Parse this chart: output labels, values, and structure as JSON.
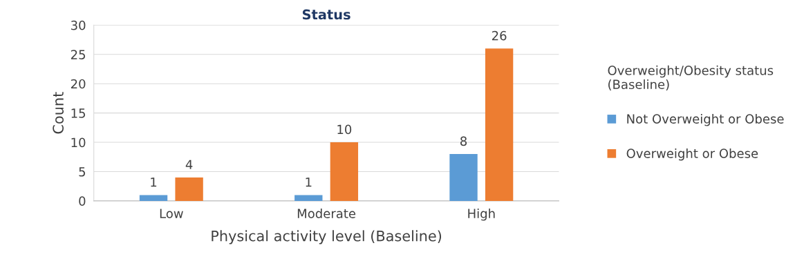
{
  "chart_data": {
    "type": "bar",
    "title": "Status",
    "xlabel": "Physical activity level (Baseline)",
    "ylabel": "Count",
    "legend_title": "Overweight/Obesity status\n(Baseline)",
    "categories": [
      "Low",
      "Moderate",
      "High"
    ],
    "series": [
      {
        "name": "Not Overweight or Obese",
        "color": "#5b9bd5",
        "values": [
          1,
          1,
          8
        ]
      },
      {
        "name": "Overweight or Obese",
        "color": "#ed7d31",
        "values": [
          4,
          10,
          26
        ]
      }
    ],
    "ylim": [
      0,
      30
    ],
    "yticks": [
      0,
      5,
      10,
      15,
      20,
      25,
      30
    ],
    "grid": "y",
    "legend": "right",
    "data_labels": true
  }
}
